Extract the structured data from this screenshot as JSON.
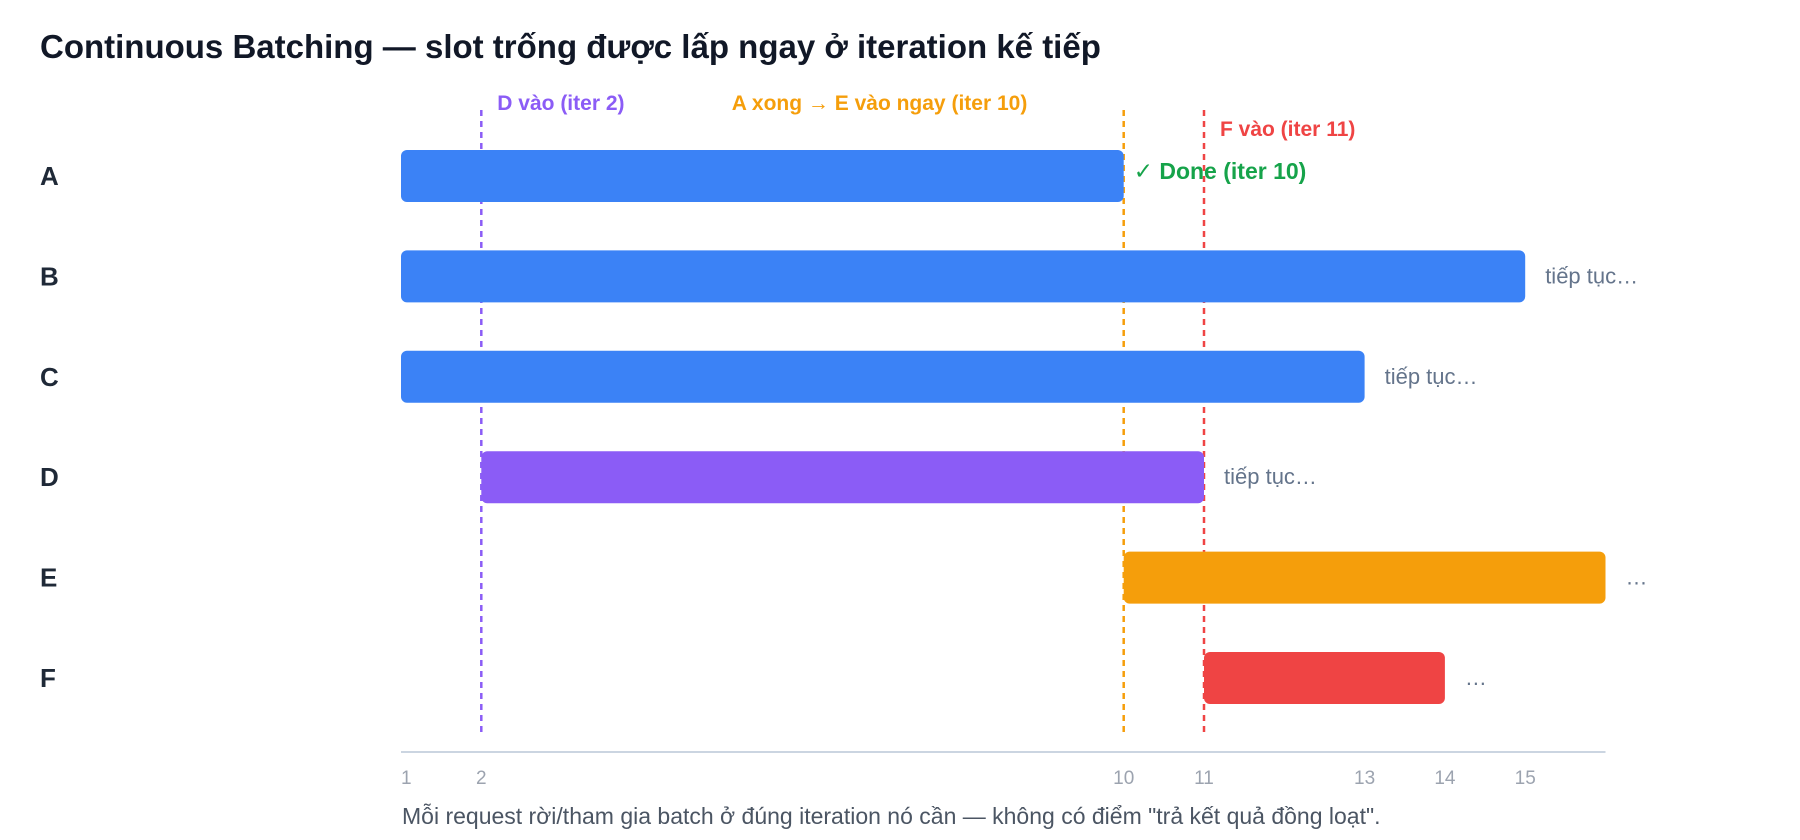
{
  "title": "Continuous Batching — slot trống được lấp ngay ở iteration kế tiếp",
  "caption": "Mỗi request rời/tham gia batch ở đúng iteration nó cần — không có điểm \"trả kết quả đồng loạt\".",
  "chart_data": {
    "type": "gantt",
    "xlabel": "",
    "ylabel": "",
    "xlim": [
      1,
      16
    ],
    "x_ticks": [
      1,
      2,
      10,
      11,
      13,
      14,
      15
    ],
    "grid": false,
    "rows": [
      {
        "label": "A",
        "start": 1,
        "end": 10,
        "color": "#3b82f6",
        "end_text": "✓ Done (iter 10)",
        "end_text_color": "#16a34a",
        "end_text_bold": true
      },
      {
        "label": "B",
        "start": 1,
        "end": 15,
        "color": "#3b82f6",
        "end_text": "tiếp tục…",
        "end_text_color": "#64748b",
        "end_text_bold": false
      },
      {
        "label": "C",
        "start": 1,
        "end": 13,
        "color": "#3b82f6",
        "end_text": "tiếp tục…",
        "end_text_color": "#64748b",
        "end_text_bold": false
      },
      {
        "label": "D",
        "start": 2,
        "end": 11,
        "color": "#8b5cf6",
        "end_text": "tiếp tục…",
        "end_text_color": "#64748b",
        "end_text_bold": false
      },
      {
        "label": "E",
        "start": 10,
        "end": 16,
        "color": "#f59e0b",
        "end_text": "…",
        "end_text_color": "#64748b",
        "end_text_bold": false
      },
      {
        "label": "F",
        "start": 11,
        "end": 14,
        "color": "#ef4444",
        "end_text": "…",
        "end_text_color": "#64748b",
        "end_text_bold": false
      }
    ],
    "events": [
      {
        "x": 2,
        "label": "D vào (iter 2)",
        "color": "#8b5cf6"
      },
      {
        "x": 10,
        "label": "A xong → E vào ngay (iter 10)",
        "color": "#f59e0b"
      },
      {
        "x": 11,
        "label": "F vào (iter 11)",
        "color": "#ef4444"
      }
    ]
  }
}
